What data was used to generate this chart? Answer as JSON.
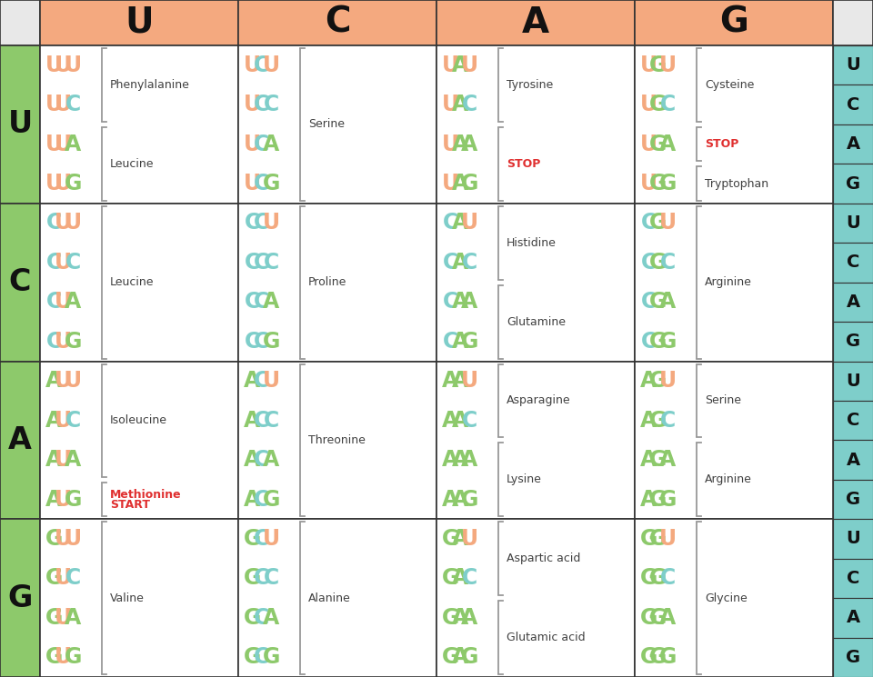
{
  "header_bg": "#f4a97f",
  "left_bg": "#8dc96b",
  "right_bg": "#7ececa",
  "cell_bg": "#ffffff",
  "stop_color": "#e03030",
  "met_color": "#e03030",
  "amino_color": "#404040",
  "fig_bg": "#e8e8e8",
  "col_headers": [
    "U",
    "C",
    "A",
    "G"
  ],
  "row_headers": [
    "U",
    "C",
    "A",
    "G"
  ],
  "codon_colors": {
    "U": "#f4a97f",
    "C": "#7ececa",
    "A": "#8dc96b",
    "G": "#8dc96b"
  },
  "cells": [
    {
      "row": 0,
      "col": 0,
      "codons": [
        [
          "U",
          "U",
          "U"
        ],
        [
          "U",
          "U",
          "C"
        ],
        [
          "U",
          "U",
          "A"
        ],
        [
          "U",
          "U",
          "G"
        ]
      ],
      "groups": [
        {
          "indices": [
            0,
            1
          ],
          "label": "Phenylalanine",
          "special": false
        },
        {
          "indices": [
            2,
            3
          ],
          "label": "Leucine",
          "special": false
        }
      ]
    },
    {
      "row": 0,
      "col": 1,
      "codons": [
        [
          "U",
          "C",
          "U"
        ],
        [
          "U",
          "C",
          "C"
        ],
        [
          "U",
          "C",
          "A"
        ],
        [
          "U",
          "C",
          "G"
        ]
      ],
      "groups": [
        {
          "indices": [
            0,
            1,
            2,
            3
          ],
          "label": "Serine",
          "special": false
        }
      ]
    },
    {
      "row": 0,
      "col": 2,
      "codons": [
        [
          "U",
          "A",
          "U"
        ],
        [
          "U",
          "A",
          "C"
        ],
        [
          "U",
          "A",
          "A"
        ],
        [
          "U",
          "A",
          "G"
        ]
      ],
      "groups": [
        {
          "indices": [
            0,
            1
          ],
          "label": "Tyrosine",
          "special": false
        },
        {
          "indices": [
            2,
            3
          ],
          "label": "STOP",
          "special": true
        }
      ]
    },
    {
      "row": 0,
      "col": 3,
      "codons": [
        [
          "U",
          "G",
          "U"
        ],
        [
          "U",
          "G",
          "C"
        ],
        [
          "U",
          "G",
          "A"
        ],
        [
          "U",
          "G",
          "G"
        ]
      ],
      "groups": [
        {
          "indices": [
            0,
            1
          ],
          "label": "Cysteine",
          "special": false
        },
        {
          "indices": [
            2
          ],
          "label": "STOP",
          "special": true
        },
        {
          "indices": [
            3
          ],
          "label": "Tryptophan",
          "special": false
        }
      ]
    },
    {
      "row": 1,
      "col": 0,
      "codons": [
        [
          "C",
          "U",
          "U"
        ],
        [
          "C",
          "U",
          "C"
        ],
        [
          "C",
          "U",
          "A"
        ],
        [
          "C",
          "U",
          "G"
        ]
      ],
      "groups": [
        {
          "indices": [
            0,
            1,
            2,
            3
          ],
          "label": "Leucine",
          "special": false
        }
      ]
    },
    {
      "row": 1,
      "col": 1,
      "codons": [
        [
          "C",
          "C",
          "U"
        ],
        [
          "C",
          "C",
          "C"
        ],
        [
          "C",
          "C",
          "A"
        ],
        [
          "C",
          "C",
          "G"
        ]
      ],
      "groups": [
        {
          "indices": [
            0,
            1,
            2,
            3
          ],
          "label": "Proline",
          "special": false
        }
      ]
    },
    {
      "row": 1,
      "col": 2,
      "codons": [
        [
          "C",
          "A",
          "U"
        ],
        [
          "C",
          "A",
          "C"
        ],
        [
          "C",
          "A",
          "A"
        ],
        [
          "C",
          "A",
          "G"
        ]
      ],
      "groups": [
        {
          "indices": [
            0,
            1
          ],
          "label": "Histidine",
          "special": false
        },
        {
          "indices": [
            2,
            3
          ],
          "label": "Glutamine",
          "special": false
        }
      ]
    },
    {
      "row": 1,
      "col": 3,
      "codons": [
        [
          "C",
          "G",
          "U"
        ],
        [
          "C",
          "G",
          "C"
        ],
        [
          "C",
          "G",
          "A"
        ],
        [
          "C",
          "G",
          "G"
        ]
      ],
      "groups": [
        {
          "indices": [
            0,
            1,
            2,
            3
          ],
          "label": "Arginine",
          "special": false
        }
      ]
    },
    {
      "row": 2,
      "col": 0,
      "codons": [
        [
          "A",
          "U",
          "U"
        ],
        [
          "A",
          "U",
          "C"
        ],
        [
          "A",
          "U",
          "A"
        ],
        [
          "A",
          "U",
          "G"
        ]
      ],
      "groups": [
        {
          "indices": [
            0,
            1,
            2
          ],
          "label": "Isoleucine",
          "special": false
        },
        {
          "indices": [
            3
          ],
          "label": "Methionine\nSTART",
          "special": true
        }
      ]
    },
    {
      "row": 2,
      "col": 1,
      "codons": [
        [
          "A",
          "C",
          "U"
        ],
        [
          "A",
          "C",
          "C"
        ],
        [
          "A",
          "C",
          "A"
        ],
        [
          "A",
          "C",
          "G"
        ]
      ],
      "groups": [
        {
          "indices": [
            0,
            1,
            2,
            3
          ],
          "label": "Threonine",
          "special": false
        }
      ]
    },
    {
      "row": 2,
      "col": 2,
      "codons": [
        [
          "A",
          "A",
          "U"
        ],
        [
          "A",
          "A",
          "C"
        ],
        [
          "A",
          "A",
          "A"
        ],
        [
          "A",
          "A",
          "G"
        ]
      ],
      "groups": [
        {
          "indices": [
            0,
            1
          ],
          "label": "Asparagine",
          "special": false
        },
        {
          "indices": [
            2,
            3
          ],
          "label": "Lysine",
          "special": false
        }
      ]
    },
    {
      "row": 2,
      "col": 3,
      "codons": [
        [
          "A",
          "G",
          "U"
        ],
        [
          "A",
          "G",
          "C"
        ],
        [
          "A",
          "G",
          "A"
        ],
        [
          "A",
          "G",
          "G"
        ]
      ],
      "groups": [
        {
          "indices": [
            0,
            1
          ],
          "label": "Serine",
          "special": false
        },
        {
          "indices": [
            2,
            3
          ],
          "label": "Arginine",
          "special": false
        }
      ]
    },
    {
      "row": 3,
      "col": 0,
      "codons": [
        [
          "G",
          "U",
          "U"
        ],
        [
          "G",
          "U",
          "C"
        ],
        [
          "G",
          "U",
          "A"
        ],
        [
          "G",
          "U",
          "G"
        ]
      ],
      "groups": [
        {
          "indices": [
            0,
            1,
            2,
            3
          ],
          "label": "Valine",
          "special": false
        }
      ]
    },
    {
      "row": 3,
      "col": 1,
      "codons": [
        [
          "G",
          "C",
          "U"
        ],
        [
          "G",
          "C",
          "C"
        ],
        [
          "G",
          "C",
          "A"
        ],
        [
          "G",
          "C",
          "G"
        ]
      ],
      "groups": [
        {
          "indices": [
            0,
            1,
            2,
            3
          ],
          "label": "Alanine",
          "special": false
        }
      ]
    },
    {
      "row": 3,
      "col": 2,
      "codons": [
        [
          "G",
          "A",
          "U"
        ],
        [
          "G",
          "A",
          "C"
        ],
        [
          "G",
          "A",
          "A"
        ],
        [
          "G",
          "A",
          "G"
        ]
      ],
      "groups": [
        {
          "indices": [
            0,
            1
          ],
          "label": "Aspartic acid",
          "special": false
        },
        {
          "indices": [
            2,
            3
          ],
          "label": "Glutamic acid",
          "special": false
        }
      ]
    },
    {
      "row": 3,
      "col": 3,
      "codons": [
        [
          "G",
          "G",
          "U"
        ],
        [
          "G",
          "G",
          "C"
        ],
        [
          "G",
          "G",
          "A"
        ],
        [
          "G",
          "G",
          "G"
        ]
      ],
      "groups": [
        {
          "indices": [
            0,
            1,
            2,
            3
          ],
          "label": "Glycine",
          "special": false
        }
      ]
    }
  ]
}
